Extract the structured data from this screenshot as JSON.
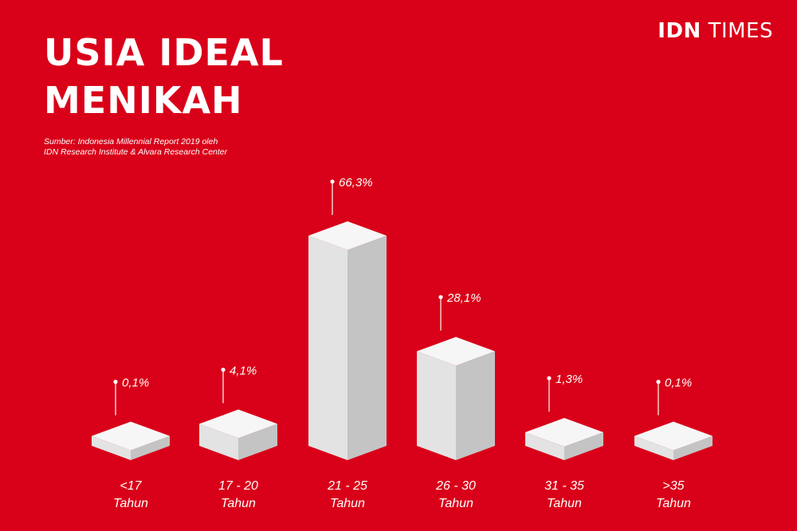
{
  "title_line1": "USIA IDEAL",
  "title_line2": "MENIKAH",
  "source_line1": "Sumber: Indonesia Millennial Report 2019 oleh",
  "source_line2": "IDN Research Institute & Alvara Research Center",
  "brand": {
    "strong": "IDN",
    "light": "TIMES"
  },
  "colors": {
    "background": "#d90019",
    "top": "#f6f6f6",
    "left": "#e3e3e3",
    "right": "#c4c4c4"
  },
  "chart_data": {
    "type": "bar",
    "title": "USIA IDEAL MENIKAH",
    "categories": [
      "<17|Tahun",
      "17 - 20|Tahun",
      "21 - 25|Tahun",
      "26 - 30|Tahun",
      "31 - 35|Tahun",
      ">35|Tahun"
    ],
    "values": [
      0.1,
      4.1,
      66.3,
      28.1,
      1.3,
      0.1
    ],
    "labels": [
      "0,1%",
      "4,1%",
      "66,3%",
      "28,1%",
      "1,3%",
      "0,1%"
    ],
    "unit": "%"
  }
}
